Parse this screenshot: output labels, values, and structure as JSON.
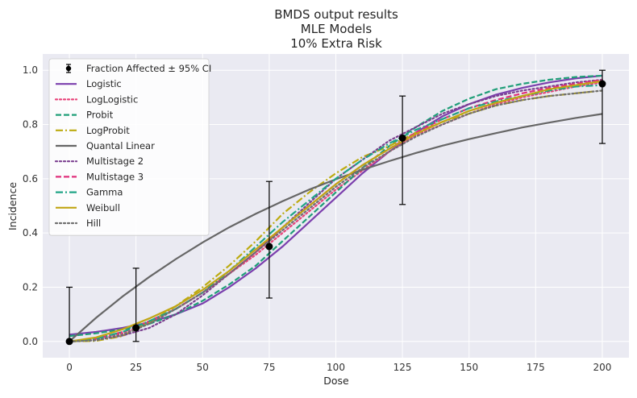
{
  "chart_data": {
    "type": "line",
    "title_lines": [
      "BMDS output results",
      "MLE Models",
      "10% Extra Risk"
    ],
    "xlabel": "Dose",
    "ylabel": "Incidence",
    "xlim": [
      -10,
      210
    ],
    "ylim": [
      -0.06,
      1.06
    ],
    "x_ticks": [
      0,
      25,
      50,
      75,
      100,
      125,
      150,
      175,
      200
    ],
    "x_tick_labels": [
      "0",
      "25",
      "50",
      "75",
      "100",
      "125",
      "150",
      "175",
      "200"
    ],
    "y_ticks": [
      0.0,
      0.2,
      0.4,
      0.6,
      0.8,
      1.0
    ],
    "y_tick_labels": [
      "0.0",
      "0.2",
      "0.4",
      "0.6",
      "0.8",
      "1.0"
    ],
    "grid": true,
    "legend_position": "top-left",
    "observed": {
      "name": "Fraction Affected ± 95% CI",
      "x": [
        0,
        25,
        75,
        125,
        200
      ],
      "y": [
        0.0,
        0.05,
        0.35,
        0.75,
        0.95
      ],
      "lower": [
        0.0,
        0.0,
        0.16,
        0.505,
        0.73
      ],
      "upper": [
        0.2,
        0.27,
        0.59,
        0.905,
        1.0
      ]
    },
    "series": [
      {
        "name": "Logistic",
        "color": "#7b3fad",
        "dash": "solid",
        "x": [
          0,
          10,
          20,
          30,
          40,
          50,
          60,
          70,
          80,
          90,
          100,
          110,
          120,
          130,
          140,
          150,
          160,
          170,
          180,
          190,
          200
        ],
        "y": [
          0.025,
          0.035,
          0.05,
          0.07,
          0.1,
          0.14,
          0.2,
          0.27,
          0.35,
          0.44,
          0.53,
          0.62,
          0.7,
          0.77,
          0.83,
          0.875,
          0.91,
          0.935,
          0.955,
          0.97,
          0.98
        ]
      },
      {
        "name": "LogLogistic",
        "color": "#e8447a",
        "dash": "dotted",
        "x": [
          0,
          10,
          20,
          30,
          40,
          50,
          60,
          70,
          80,
          90,
          100,
          110,
          120,
          130,
          140,
          150,
          160,
          170,
          180,
          190,
          200
        ],
        "y": [
          0.0,
          0.006,
          0.03,
          0.07,
          0.12,
          0.18,
          0.25,
          0.32,
          0.4,
          0.48,
          0.56,
          0.63,
          0.7,
          0.76,
          0.8,
          0.84,
          0.875,
          0.9,
          0.92,
          0.94,
          0.955
        ]
      },
      {
        "name": "Probit",
        "color": "#1f9e78",
        "dash": "dashed",
        "x": [
          0,
          10,
          20,
          30,
          40,
          50,
          60,
          70,
          80,
          90,
          100,
          110,
          120,
          130,
          140,
          150,
          160,
          170,
          180,
          190,
          200
        ],
        "y": [
          0.02,
          0.03,
          0.045,
          0.065,
          0.1,
          0.15,
          0.21,
          0.28,
          0.37,
          0.46,
          0.55,
          0.64,
          0.72,
          0.79,
          0.85,
          0.895,
          0.93,
          0.95,
          0.965,
          0.975,
          0.98
        ]
      },
      {
        "name": "LogProbit",
        "color": "#bcab10",
        "dash": "dashdot",
        "x": [
          0,
          10,
          20,
          30,
          40,
          50,
          60,
          70,
          80,
          90,
          100,
          110,
          120,
          130,
          140,
          150,
          160,
          170,
          180,
          190,
          200
        ],
        "y": [
          0.0,
          0.002,
          0.02,
          0.07,
          0.13,
          0.2,
          0.28,
          0.37,
          0.47,
          0.55,
          0.62,
          0.68,
          0.72,
          0.77,
          0.81,
          0.84,
          0.87,
          0.89,
          0.905,
          0.915,
          0.925
        ]
      },
      {
        "name": "Quantal Linear",
        "color": "#666666",
        "dash": "solid",
        "x": [
          0,
          10,
          20,
          30,
          40,
          50,
          60,
          70,
          80,
          90,
          100,
          110,
          120,
          130,
          140,
          150,
          160,
          170,
          180,
          190,
          200
        ],
        "y": [
          0.0,
          0.087,
          0.166,
          0.238,
          0.304,
          0.365,
          0.421,
          0.471,
          0.517,
          0.56,
          0.598,
          0.633,
          0.665,
          0.695,
          0.722,
          0.746,
          0.768,
          0.789,
          0.807,
          0.824,
          0.839
        ]
      },
      {
        "name": "Multistage 2",
        "color": "#7a3f8f",
        "dash": "dotted",
        "x": [
          0,
          10,
          20,
          30,
          40,
          50,
          60,
          70,
          80,
          90,
          100,
          110,
          120,
          130,
          140,
          150,
          160,
          170,
          180,
          190,
          200
        ],
        "y": [
          0.0,
          0.005,
          0.022,
          0.05,
          0.1,
          0.17,
          0.25,
          0.33,
          0.42,
          0.51,
          0.6,
          0.67,
          0.74,
          0.79,
          0.84,
          0.875,
          0.905,
          0.925,
          0.94,
          0.955,
          0.965
        ]
      },
      {
        "name": "Multistage 3",
        "color": "#e0307c",
        "dash": "dashed",
        "x": [
          0,
          10,
          20,
          30,
          40,
          50,
          60,
          70,
          80,
          90,
          100,
          110,
          120,
          130,
          140,
          150,
          160,
          170,
          180,
          190,
          200
        ],
        "y": [
          0.0,
          0.01,
          0.035,
          0.075,
          0.12,
          0.18,
          0.25,
          0.33,
          0.42,
          0.5,
          0.58,
          0.65,
          0.71,
          0.77,
          0.82,
          0.86,
          0.89,
          0.915,
          0.935,
          0.95,
          0.965
        ]
      },
      {
        "name": "Gamma",
        "color": "#20a487",
        "dash": "dashdot",
        "x": [
          0,
          10,
          20,
          30,
          40,
          50,
          60,
          70,
          80,
          90,
          100,
          110,
          120,
          130,
          140,
          150,
          160,
          170,
          180,
          190,
          200
        ],
        "y": [
          0.0,
          0.01,
          0.035,
          0.075,
          0.12,
          0.18,
          0.26,
          0.35,
          0.44,
          0.52,
          0.6,
          0.67,
          0.73,
          0.78,
          0.82,
          0.86,
          0.885,
          0.905,
          0.925,
          0.94,
          0.945
        ]
      },
      {
        "name": "Weibull",
        "color": "#c0a614",
        "dash": "solid",
        "x": [
          0,
          10,
          20,
          30,
          40,
          50,
          60,
          70,
          80,
          90,
          100,
          110,
          120,
          130,
          140,
          150,
          160,
          170,
          180,
          190,
          200
        ],
        "y": [
          0.0,
          0.015,
          0.045,
          0.085,
          0.13,
          0.19,
          0.26,
          0.34,
          0.42,
          0.5,
          0.58,
          0.65,
          0.71,
          0.765,
          0.81,
          0.85,
          0.88,
          0.905,
          0.93,
          0.945,
          0.96
        ]
      },
      {
        "name": "Hill",
        "color": "#6f6f6f",
        "dash": "dotted",
        "x": [
          0,
          10,
          20,
          30,
          40,
          50,
          60,
          70,
          80,
          90,
          100,
          110,
          120,
          130,
          140,
          150,
          160,
          170,
          180,
          190,
          200
        ],
        "y": [
          0.0,
          0.004,
          0.025,
          0.065,
          0.12,
          0.18,
          0.25,
          0.33,
          0.41,
          0.49,
          0.57,
          0.64,
          0.7,
          0.755,
          0.8,
          0.84,
          0.87,
          0.89,
          0.905,
          0.915,
          0.925
        ]
      }
    ]
  }
}
